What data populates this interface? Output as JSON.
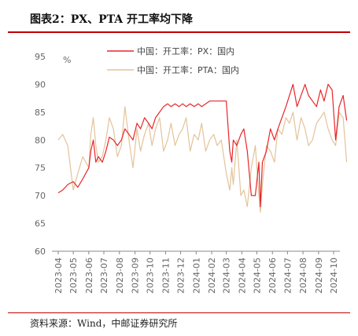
{
  "header": {
    "title": "图表2：PX、PTA 开工率均下降"
  },
  "footer": {
    "source": "资料来源：Wind，中邮证券研究所"
  },
  "colors": {
    "accent": "#c00000"
  },
  "chart_data": {
    "type": "line",
    "title": "",
    "xlabel": "",
    "ylabel": "%",
    "ylim": [
      60,
      95
    ],
    "yticks": [
      60,
      65,
      70,
      75,
      80,
      85,
      90,
      95
    ],
    "x_ticks": [
      "2023-04",
      "2023-05",
      "2023-06",
      "2023-07",
      "2023-08",
      "2023-09",
      "2023-10",
      "2023-11",
      "2023-12",
      "2024-01",
      "2024-02",
      "2024-03",
      "2024-04",
      "2024-05",
      "2024-06",
      "2024-07",
      "2024-08",
      "2024-09",
      "2024-10"
    ],
    "legend_position": "top-right",
    "series": [
      {
        "name": "中国：开工率：PX：国内",
        "color": "#e8262a",
        "x": [
          "2023-04-01",
          "2023-04-10",
          "2023-04-20",
          "2023-05-01",
          "2023-05-10",
          "2023-05-20",
          "2023-06-01",
          "2023-06-05",
          "2023-06-10",
          "2023-06-15",
          "2023-06-20",
          "2023-06-28",
          "2023-07-05",
          "2023-07-12",
          "2023-07-20",
          "2023-07-28",
          "2023-08-05",
          "2023-08-12",
          "2023-08-20",
          "2023-08-28",
          "2023-09-05",
          "2023-09-12",
          "2023-09-20",
          "2023-09-28",
          "2023-10-05",
          "2023-10-12",
          "2023-10-20",
          "2023-10-28",
          "2023-11-05",
          "2023-11-12",
          "2023-11-20",
          "2023-11-28",
          "2023-12-05",
          "2023-12-12",
          "2023-12-20",
          "2023-12-28",
          "2024-01-05",
          "2024-01-12",
          "2024-01-20",
          "2024-01-28",
          "2024-02-05",
          "2024-02-12",
          "2024-02-20",
          "2024-03-01",
          "2024-03-08",
          "2024-03-12",
          "2024-03-15",
          "2024-03-22",
          "2024-03-30",
          "2024-04-05",
          "2024-04-12",
          "2024-04-20",
          "2024-04-28",
          "2024-05-05",
          "2024-05-08",
          "2024-05-12",
          "2024-05-20",
          "2024-05-28",
          "2024-06-05",
          "2024-06-12",
          "2024-06-20",
          "2024-06-28",
          "2024-07-05",
          "2024-07-12",
          "2024-07-20",
          "2024-07-28",
          "2024-08-05",
          "2024-08-12",
          "2024-08-20",
          "2024-08-28",
          "2024-09-05",
          "2024-09-12",
          "2024-09-20",
          "2024-09-28",
          "2024-10-05",
          "2024-10-12",
          "2024-10-20",
          "2024-10-27"
        ],
        "values": [
          70.5,
          71,
          72,
          72.5,
          71.5,
          73,
          75,
          78,
          80,
          76,
          77,
          76,
          78,
          80.5,
          80,
          79,
          80,
          82,
          81,
          80,
          83,
          82,
          84,
          83,
          82,
          84,
          85,
          86,
          86.5,
          86,
          86.5,
          86,
          86.5,
          86,
          86.5,
          86,
          86.5,
          86,
          86.5,
          87,
          87,
          87,
          87,
          87,
          78,
          76,
          80,
          79,
          81,
          82,
          78,
          70,
          70,
          76,
          68,
          76,
          78,
          82,
          80,
          82,
          84,
          86,
          88,
          90,
          86,
          88,
          90,
          88,
          87,
          86,
          89,
          87,
          90,
          89,
          80,
          86,
          88,
          83.5
        ]
      },
      {
        "name": "中国：开工率：PTA：国内",
        "color": "#e3c39a",
        "x": [
          "2023-04-01",
          "2023-04-10",
          "2023-04-20",
          "2023-05-01",
          "2023-05-10",
          "2023-05-20",
          "2023-06-01",
          "2023-06-05",
          "2023-06-10",
          "2023-06-15",
          "2023-06-20",
          "2023-06-28",
          "2023-07-05",
          "2023-07-12",
          "2023-07-20",
          "2023-07-28",
          "2023-08-05",
          "2023-08-12",
          "2023-08-20",
          "2023-08-28",
          "2023-09-05",
          "2023-09-12",
          "2023-09-20",
          "2023-09-28",
          "2023-10-05",
          "2023-10-12",
          "2023-10-20",
          "2023-10-28",
          "2023-11-05",
          "2023-11-12",
          "2023-11-20",
          "2023-11-28",
          "2023-12-05",
          "2023-12-12",
          "2023-12-20",
          "2023-12-28",
          "2024-01-05",
          "2024-01-12",
          "2024-01-20",
          "2024-01-28",
          "2024-02-05",
          "2024-02-12",
          "2024-02-20",
          "2024-03-01",
          "2024-03-08",
          "2024-03-12",
          "2024-03-15",
          "2024-03-22",
          "2024-03-30",
          "2024-04-05",
          "2024-04-12",
          "2024-04-20",
          "2024-04-28",
          "2024-05-05",
          "2024-05-08",
          "2024-05-12",
          "2024-05-20",
          "2024-05-28",
          "2024-06-05",
          "2024-06-12",
          "2024-06-20",
          "2024-06-28",
          "2024-07-05",
          "2024-07-12",
          "2024-07-20",
          "2024-07-28",
          "2024-08-05",
          "2024-08-12",
          "2024-08-20",
          "2024-08-28",
          "2024-09-05",
          "2024-09-12",
          "2024-09-20",
          "2024-09-28",
          "2024-10-05",
          "2024-10-12",
          "2024-10-20",
          "2024-10-27"
        ],
        "values": [
          80,
          81,
          79,
          71,
          74,
          77,
          75,
          81,
          84,
          79,
          76,
          77,
          80,
          84,
          82,
          77,
          79,
          86,
          80,
          75,
          82,
          78,
          81,
          83,
          79,
          82,
          84,
          78,
          80,
          83,
          79,
          81,
          82,
          84,
          78,
          81,
          80,
          83,
          78,
          80,
          81,
          79,
          80,
          74,
          71,
          75,
          72,
          80,
          70,
          71,
          68,
          75,
          79,
          70,
          67,
          72,
          79,
          78,
          76,
          82,
          81,
          84,
          83,
          85,
          80,
          84,
          82,
          79,
          80,
          83,
          84,
          85,
          82,
          80,
          79,
          85,
          84,
          76
        ]
      }
    ]
  }
}
